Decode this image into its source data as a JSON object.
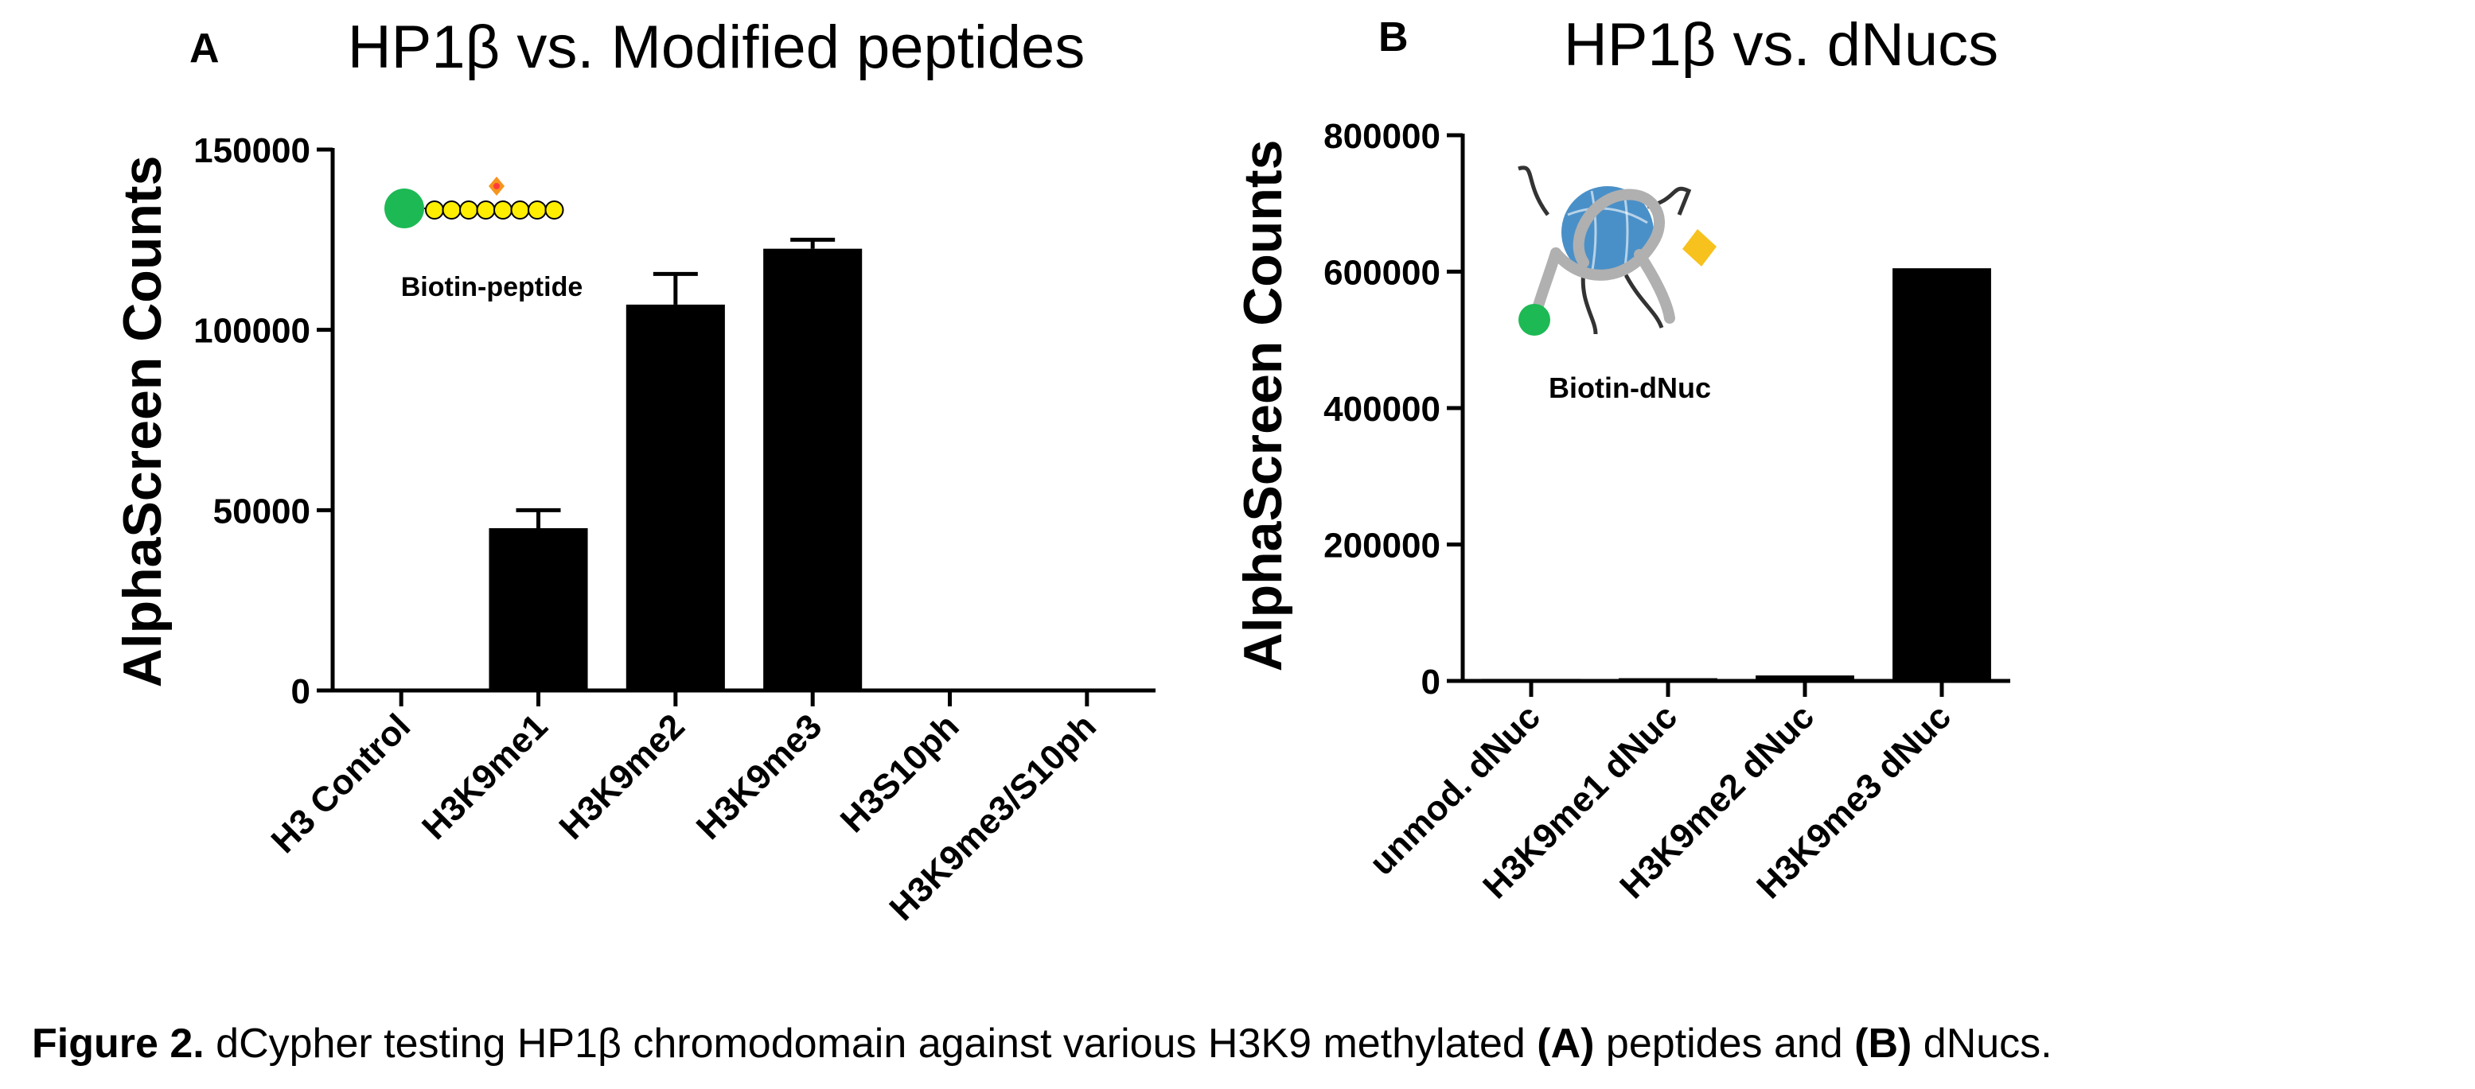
{
  "chart_data": [
    {
      "panel": "A",
      "type": "bar",
      "title": "HP1β vs. Modified peptides",
      "xlabel": "",
      "ylabel": "AlphaScreen Counts",
      "ylim": [
        0,
        150000
      ],
      "yticks": [
        "0",
        "50000",
        "100000",
        "150000"
      ],
      "categories": [
        "H3 Control",
        "H3K9me1",
        "H3K9me2",
        "H3K9me3",
        "H3S10ph",
        "H3K9me3/S10ph"
      ],
      "values": [
        500,
        45000,
        107000,
        122500,
        500,
        500
      ],
      "errors": [
        0,
        5000,
        8500,
        2500,
        0,
        0
      ],
      "grid": false,
      "legend": "none",
      "bar_color": "#000000",
      "inset_label": "Biotin-peptide",
      "inset_icon": "biotin-peptide-icon"
    },
    {
      "panel": "B",
      "type": "bar",
      "title": "HP1β vs. dNucs",
      "xlabel": "",
      "ylabel": "AlphaScreen Counts",
      "ylim": [
        0,
        800000
      ],
      "yticks": [
        "0",
        "200000",
        "400000",
        "600000",
        "800000"
      ],
      "categories": [
        "unmod. dNuc",
        "H3K9me1 dNuc",
        "H3K9me2 dNuc",
        "H3K9me3 dNuc"
      ],
      "values": [
        3000,
        4000,
        8000,
        605000
      ],
      "errors": [
        0,
        0,
        0,
        0
      ],
      "grid": false,
      "legend": "none",
      "bar_color": "#000000",
      "inset_label": "Biotin-dNuc",
      "inset_icon": "biotin-dnuc-icon"
    }
  ],
  "caption": {
    "prefix": "Figure 2.",
    "part1": " dCypher testing HP1β chromodomain against various H3K9 methylated ",
    "bold_a": "(A)",
    "part2": " peptides and ",
    "bold_b": "(B)",
    "part3": " dNucs."
  },
  "colors": {
    "biotin": "#1db954",
    "peptide_bead": "#ffee00",
    "modification": "#f7941d",
    "histone_core": "#4a90c8",
    "dna_wrap": "#b0b0b0",
    "tail": "#333333",
    "nuc_modification": "#f7c21d"
  }
}
